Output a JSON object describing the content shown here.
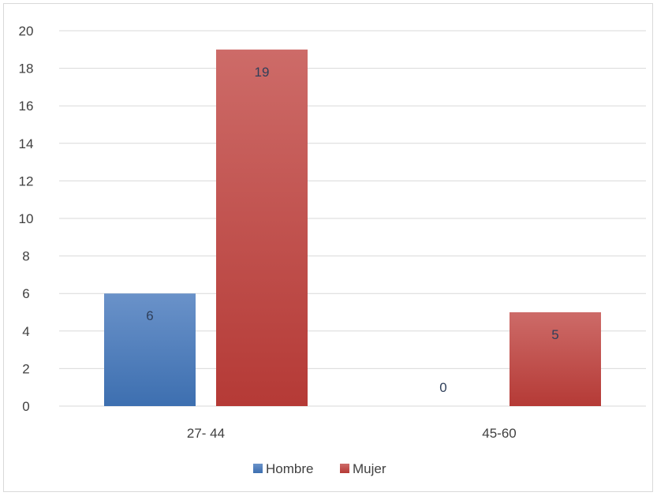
{
  "chart_data": {
    "type": "bar",
    "categories": [
      "27- 44",
      "45-60"
    ],
    "series": [
      {
        "name": "Hombre",
        "values": [
          6,
          0
        ],
        "color": "#4f81bd"
      },
      {
        "name": "Mujer",
        "values": [
          19,
          5
        ],
        "color": "#c0504d"
      }
    ],
    "ylim": [
      0,
      20
    ],
    "yticks": [
      0,
      2,
      4,
      6,
      8,
      10,
      12,
      14,
      16,
      18,
      20
    ],
    "grid": true,
    "legend_position": "bottom",
    "data_labels": true
  }
}
